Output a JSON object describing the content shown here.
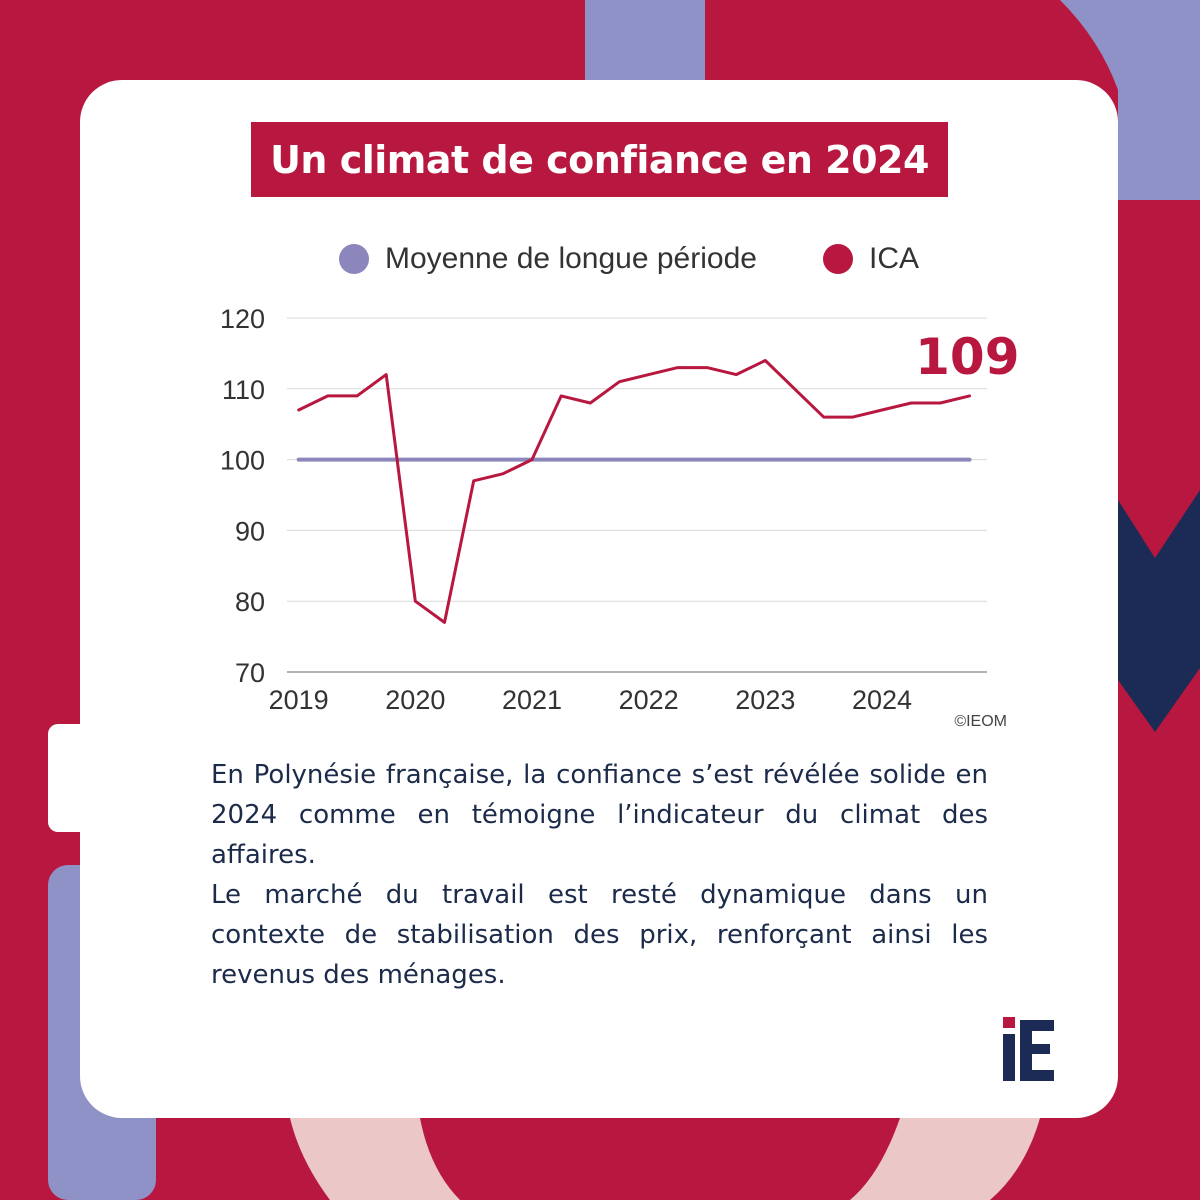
{
  "colors": {
    "background": "#b8183f",
    "accent_purple": "#8e92c6",
    "navy": "#1c2b55",
    "pink": "#ecc7c7",
    "series_ica": "#b8183f",
    "series_moyenne": "#8b86bb"
  },
  "title": "Un climat de confiance en 2024",
  "chart_data": {
    "type": "line",
    "legend_position": "top",
    "grid": true,
    "ylim": [
      70,
      120
    ],
    "y_ticks": [
      70,
      80,
      90,
      100,
      110,
      120
    ],
    "x_ticks": [
      "2019",
      "2020",
      "2021",
      "2022",
      "2023",
      "2024"
    ],
    "x_tick_positions": [
      2019.0,
      2020.0,
      2021.0,
      2022.0,
      2023.0,
      2024.0
    ],
    "xlim": [
      2018.9,
      2024.9
    ],
    "series": [
      {
        "name": "Moyenne de longue période",
        "color": "#8b86bb",
        "x": [
          2019.0,
          2024.75
        ],
        "values": [
          100,
          100
        ]
      },
      {
        "name": "ICA",
        "color": "#b8183f",
        "x": [
          2019.0,
          2019.25,
          2019.5,
          2019.75,
          2020.0,
          2020.25,
          2020.5,
          2020.75,
          2021.0,
          2021.25,
          2021.5,
          2021.75,
          2022.0,
          2022.25,
          2022.5,
          2022.75,
          2023.0,
          2023.25,
          2023.5,
          2023.75,
          2024.0,
          2024.25,
          2024.5,
          2024.75
        ],
        "values": [
          107,
          109,
          109,
          112,
          80,
          77,
          97,
          98,
          100,
          109,
          108,
          111,
          112,
          113,
          113,
          112,
          114,
          110,
          106,
          106,
          107,
          108,
          108,
          109
        ]
      }
    ],
    "annotations": [
      {
        "text": "109",
        "color": "#b8183f"
      }
    ],
    "source": "©IEOM"
  },
  "body": {
    "paragraph_1": "En Polynésie française, la confiance s’est révélée solide en 2024 comme en témoigne l’indicateur du climat des affaires.",
    "paragraph_2": "Le marché du travail est resté dynamique dans un contexte de stabilisation des prix, renforçant ainsi les revenus des ménages."
  },
  "logo": {
    "text": "IE"
  }
}
